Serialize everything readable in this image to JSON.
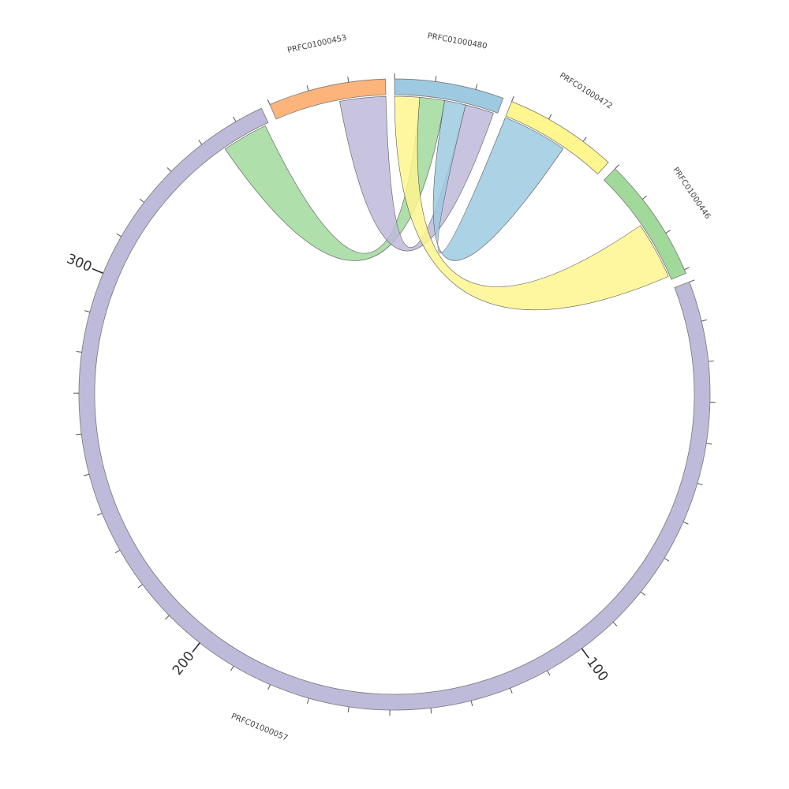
{
  "chart_data": {
    "type": "chord",
    "segments": [
      {
        "name": "PRFC01000057",
        "length": 357,
        "color": "#bebada"
      },
      {
        "name": "PRFC01000453",
        "length": 29,
        "color": "#fdb47b"
      },
      {
        "name": "PRFC01000480",
        "length": 27,
        "color": "#9ecae1"
      },
      {
        "name": "PRFC01000472",
        "length": 28,
        "color": "#fff68f"
      },
      {
        "name": "PRFC01000446",
        "length": 31,
        "color": "#a1d99b"
      }
    ],
    "tick_step": 10,
    "major_ticks": [
      100,
      200,
      300
    ],
    "links": [
      {
        "source": 0,
        "source_range": [
          344,
          356
        ],
        "target": 2,
        "target_range": [
          6.5,
          13
        ],
        "color": "#a1d99b"
      },
      {
        "source": 1,
        "source_range": [
          17,
          29
        ],
        "target": 2,
        "target_range": [
          18.5,
          26
        ],
        "color": "#bebada"
      },
      {
        "source": 3,
        "source_range": [
          0,
          17
        ],
        "target": 2,
        "target_range": [
          13,
          18.5
        ],
        "color": "#9ecae1"
      },
      {
        "source": 4,
        "source_range": [
          15,
          30
        ],
        "target": 2,
        "target_range": [
          0,
          6.5
        ],
        "color": "#fff68f"
      }
    ]
  }
}
